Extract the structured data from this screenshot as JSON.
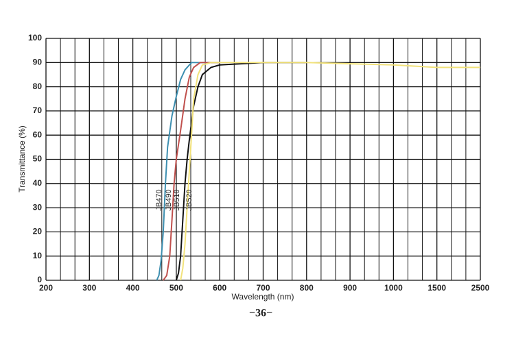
{
  "chart_data": {
    "type": "line",
    "x_label": "Wavelength (nm)",
    "y_label": "Transmittance (%)",
    "xticks": [
      200,
      300,
      400,
      500,
      600,
      700,
      800,
      900,
      1000,
      1500,
      2500
    ],
    "xlim": [
      200,
      2500
    ],
    "yticks": [
      0,
      10,
      20,
      30,
      40,
      50,
      60,
      70,
      80,
      90,
      100
    ],
    "ylim": [
      0,
      100
    ],
    "grid": true,
    "series": [
      {
        "name": "JB470",
        "color": "#3d8fb0",
        "x": [
          455,
          460,
          465,
          470,
          475,
          480,
          490,
          500,
          510,
          520,
          535,
          560,
          600
        ],
        "values": [
          0,
          2,
          8,
          20,
          40,
          55,
          68,
          76,
          83,
          87,
          90,
          90,
          90
        ]
      },
      {
        "name": "JB490",
        "color": "#c0504d",
        "x": [
          470,
          478,
          485,
          490,
          495,
          500,
          510,
          520,
          530,
          540,
          555,
          600
        ],
        "values": [
          0,
          2,
          10,
          25,
          40,
          50,
          62,
          75,
          84,
          88,
          90,
          90
        ]
      },
      {
        "name": "JB510",
        "color": "#111111",
        "x": [
          500,
          505,
          510,
          515,
          520,
          525,
          530,
          540,
          550,
          560,
          580,
          600,
          700,
          800
        ],
        "values": [
          0,
          3,
          10,
          25,
          40,
          50,
          58,
          72,
          80,
          85,
          88,
          89,
          90,
          90
        ]
      },
      {
        "name": "JB520",
        "color": "#f2e27a",
        "x": [
          510,
          515,
          520,
          525,
          530,
          535,
          540,
          550,
          560,
          580,
          600,
          800,
          1000,
          1500,
          2500
        ],
        "values": [
          0,
          5,
          15,
          30,
          45,
          60,
          75,
          85,
          89,
          90,
          90,
          90,
          89,
          88,
          88
        ]
      }
    ]
  },
  "page_number": "−36−"
}
